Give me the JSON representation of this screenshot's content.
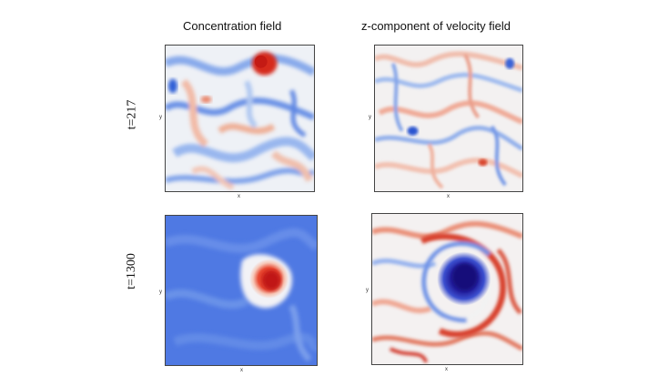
{
  "figure": {
    "columns": [
      {
        "title": "Concentration field"
      },
      {
        "title": "z-component of velocity field"
      }
    ],
    "rows": [
      {
        "label": "t=217"
      },
      {
        "label": "t=1300"
      }
    ],
    "axis_labels": {
      "x": "x",
      "y": "y"
    },
    "palette": {
      "red": "#d62a1e",
      "light_red": "#f0a98e",
      "white": "#f7f7f7",
      "light_blue": "#9bbcef",
      "blue": "#3f6fe0",
      "dark_blue": "#1a128a"
    }
  }
}
